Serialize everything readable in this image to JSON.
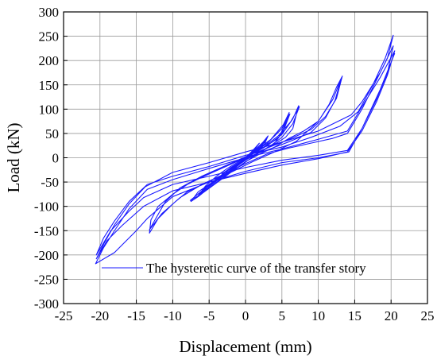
{
  "chart_data": {
    "type": "line",
    "title": "",
    "xlabel": "Displacement (mm)",
    "ylabel": "Load (kN)",
    "xlim": [
      -25,
      25
    ],
    "ylim": [
      -300,
      300
    ],
    "x_ticks": [
      -25,
      -20,
      -15,
      -10,
      -5,
      0,
      5,
      10,
      15,
      20,
      25
    ],
    "y_ticks": [
      -300,
      -250,
      -200,
      -150,
      -100,
      -50,
      0,
      50,
      100,
      150,
      200,
      250,
      300
    ],
    "grid": true,
    "legend_position": "lower-right",
    "series": [
      {
        "name": "The hysteretic curve of the transfer story",
        "color": "#1a1aff",
        "points": [
          [
            0,
            0
          ],
          [
            0.8,
            10
          ],
          [
            1.5,
            22
          ],
          [
            1.8,
            28
          ],
          [
            1.2,
            18
          ],
          [
            0.4,
            6
          ],
          [
            -0.4,
            -6
          ],
          [
            -1.0,
            -12
          ],
          [
            -1.5,
            -18
          ],
          [
            -1.2,
            -14
          ],
          [
            -0.4,
            -5
          ],
          [
            0.5,
            6
          ],
          [
            1.2,
            16
          ],
          [
            1.9,
            30
          ],
          [
            1.3,
            20
          ],
          [
            0.3,
            4
          ],
          [
            -0.6,
            -8
          ],
          [
            -1.6,
            -20
          ],
          [
            -1.0,
            -12
          ],
          [
            0,
            0
          ],
          [
            1.0,
            12
          ],
          [
            2.0,
            22
          ],
          [
            2.8,
            35
          ],
          [
            3.0,
            42
          ],
          [
            2.4,
            30
          ],
          [
            1.2,
            14
          ],
          [
            0,
            0
          ],
          [
            -1.2,
            -14
          ],
          [
            -2.5,
            -26
          ],
          [
            -3.2,
            -32
          ],
          [
            -2.6,
            -28
          ],
          [
            -1.2,
            -15
          ],
          [
            0.4,
            4
          ],
          [
            1.8,
            18
          ],
          [
            2.6,
            28
          ],
          [
            3.1,
            45
          ],
          [
            2.4,
            32
          ],
          [
            1.0,
            12
          ],
          [
            -0.5,
            -6
          ],
          [
            -2.0,
            -20
          ],
          [
            -3.2,
            -33
          ],
          [
            -2.5,
            -27
          ],
          [
            -1.0,
            -12
          ],
          [
            0,
            0
          ],
          [
            1.5,
            14
          ],
          [
            3.0,
            26
          ],
          [
            4.5,
            40
          ],
          [
            5.5,
            70
          ],
          [
            6.0,
            93
          ],
          [
            5.2,
            68
          ],
          [
            3.5,
            38
          ],
          [
            1.5,
            16
          ],
          [
            -0.5,
            -4
          ],
          [
            -2.5,
            -22
          ],
          [
            -4.0,
            -38
          ],
          [
            -5.5,
            -58
          ],
          [
            -6.5,
            -78
          ],
          [
            -5.6,
            -66
          ],
          [
            -4.0,
            -48
          ],
          [
            -2.0,
            -26
          ],
          [
            0,
            -5
          ],
          [
            2.0,
            12
          ],
          [
            4.0,
            30
          ],
          [
            5.2,
            55
          ],
          [
            6.1,
            90
          ],
          [
            5.0,
            60
          ],
          [
            3.0,
            30
          ],
          [
            1.0,
            10
          ],
          [
            -1.0,
            -12
          ],
          [
            -3.0,
            -32
          ],
          [
            -5.0,
            -55
          ],
          [
            -6.6,
            -80
          ],
          [
            -5.4,
            -66
          ],
          [
            -3.5,
            -45
          ],
          [
            -1.5,
            -22
          ],
          [
            0,
            -4
          ],
          [
            2.0,
            12
          ],
          [
            4.0,
            28
          ],
          [
            5.5,
            42
          ],
          [
            6.5,
            60
          ],
          [
            7.0,
            90
          ],
          [
            7.3,
            107
          ],
          [
            6.5,
            80
          ],
          [
            5.0,
            48
          ],
          [
            3.0,
            25
          ],
          [
            1.0,
            8
          ],
          [
            -1.0,
            -14
          ],
          [
            -3.0,
            -35
          ],
          [
            -5.0,
            -55
          ],
          [
            -6.5,
            -70
          ],
          [
            -7.5,
            -90
          ],
          [
            -6.5,
            -80
          ],
          [
            -5.0,
            -62
          ],
          [
            -3.0,
            -40
          ],
          [
            -1.0,
            -20
          ],
          [
            1.0,
            2
          ],
          [
            3.0,
            20
          ],
          [
            5.0,
            42
          ],
          [
            6.5,
            70
          ],
          [
            7.4,
            105
          ],
          [
            6.2,
            74
          ],
          [
            4.5,
            45
          ],
          [
            2.5,
            22
          ],
          [
            0.5,
            3
          ],
          [
            -1.5,
            -22
          ],
          [
            -3.5,
            -42
          ],
          [
            -5.5,
            -62
          ],
          [
            -7.6,
            -88
          ],
          [
            -6.2,
            -76
          ],
          [
            -4.0,
            -52
          ],
          [
            -2.0,
            -30
          ],
          [
            0,
            -8
          ],
          [
            2.0,
            8
          ],
          [
            4.0,
            22
          ],
          [
            6.0,
            40
          ],
          [
            8.0,
            55
          ],
          [
            10.0,
            75
          ],
          [
            11.5,
            110
          ],
          [
            12.5,
            145
          ],
          [
            13.2,
            165
          ],
          [
            12.3,
            118
          ],
          [
            11.0,
            82
          ],
          [
            9.0,
            52
          ],
          [
            6.0,
            33
          ],
          [
            3.0,
            16
          ],
          [
            0,
            0
          ],
          [
            -3.0,
            -20
          ],
          [
            -6.0,
            -40
          ],
          [
            -8.0,
            -55
          ],
          [
            -10.0,
            -75
          ],
          [
            -12.0,
            -100
          ],
          [
            -13.0,
            -128
          ],
          [
            -13.2,
            -155
          ],
          [
            -12.0,
            -125
          ],
          [
            -10.0,
            -95
          ],
          [
            -8.0,
            -70
          ],
          [
            -5.0,
            -48
          ],
          [
            -2.0,
            -30
          ],
          [
            1.0,
            -8
          ],
          [
            4.0,
            12
          ],
          [
            7.0,
            34
          ],
          [
            10.0,
            75
          ],
          [
            12.0,
            120
          ],
          [
            13.3,
            168
          ],
          [
            12.5,
            122
          ],
          [
            11.0,
            85
          ],
          [
            9.0,
            58
          ],
          [
            6.0,
            38
          ],
          [
            3.0,
            20
          ],
          [
            0,
            2
          ],
          [
            -3.0,
            -18
          ],
          [
            -6.0,
            -38
          ],
          [
            -9.0,
            -62
          ],
          [
            -11.0,
            -90
          ],
          [
            -13.2,
            -148
          ],
          [
            -11.5,
            -115
          ],
          [
            -9.0,
            -82
          ],
          [
            -6.0,
            -55
          ],
          [
            -3.0,
            -34
          ],
          [
            0,
            -12
          ],
          [
            3.0,
            8
          ],
          [
            6.0,
            20
          ],
          [
            9.0,
            30
          ],
          [
            12.0,
            40
          ],
          [
            14.0,
            50
          ],
          [
            16.0,
            100
          ],
          [
            18.0,
            160
          ],
          [
            19.5,
            205
          ],
          [
            20.3,
            252
          ],
          [
            19.2,
            205
          ],
          [
            17.5,
            150
          ],
          [
            15.5,
            95
          ],
          [
            13.0,
            65
          ],
          [
            9.0,
            42
          ],
          [
            5.0,
            22
          ],
          [
            0,
            5
          ],
          [
            -5.0,
            -18
          ],
          [
            -10.0,
            -38
          ],
          [
            -13.5,
            -55
          ],
          [
            -16.0,
            -90
          ],
          [
            -18.0,
            -130
          ],
          [
            -19.5,
            -165
          ],
          [
            -20.5,
            -200
          ],
          [
            -18.5,
            -150
          ],
          [
            -16.0,
            -110
          ],
          [
            -14.0,
            -82
          ],
          [
            -10.0,
            -55
          ],
          [
            -5.0,
            -38
          ],
          [
            0,
            -20
          ],
          [
            5.0,
            -5
          ],
          [
            10.0,
            5
          ],
          [
            14.0,
            15
          ],
          [
            16.0,
            60
          ],
          [
            18.0,
            120
          ],
          [
            19.5,
            175
          ],
          [
            20.3,
            230
          ],
          [
            18.5,
            175
          ],
          [
            16.0,
            115
          ],
          [
            14.5,
            88
          ],
          [
            10.0,
            55
          ],
          [
            5.0,
            32
          ],
          [
            0,
            12
          ],
          [
            -5.0,
            -10
          ],
          [
            -10.0,
            -30
          ],
          [
            -13.8,
            -60
          ],
          [
            -16.0,
            -95
          ],
          [
            -18.0,
            -138
          ],
          [
            -19.5,
            -178
          ],
          [
            -20.5,
            -208
          ],
          [
            -19.0,
            -170
          ],
          [
            -17.0,
            -140
          ],
          [
            -14.0,
            -100
          ],
          [
            -10.0,
            -68
          ],
          [
            -5.0,
            -50
          ],
          [
            0,
            -32
          ],
          [
            5.0,
            -15
          ],
          [
            10.0,
            -2
          ],
          [
            14.0,
            12
          ],
          [
            16.0,
            55
          ],
          [
            18.0,
            115
          ],
          [
            19.5,
            170
          ],
          [
            20.5,
            220
          ],
          [
            18.5,
            165
          ],
          [
            16.0,
            105
          ],
          [
            14.0,
            55
          ],
          [
            10.0,
            38
          ],
          [
            5.0,
            18
          ],
          [
            0,
            0
          ],
          [
            -5.0,
            -22
          ],
          [
            -10.0,
            -45
          ],
          [
            -13.5,
            -65
          ],
          [
            -16.0,
            -105
          ],
          [
            -18.0,
            -150
          ],
          [
            -19.5,
            -185
          ],
          [
            -20.6,
            -218
          ],
          [
            -18.0,
            -195
          ],
          [
            -15.0,
            -150
          ],
          [
            -13.5,
            -125
          ],
          [
            -10.0,
            -80
          ],
          [
            -5.0,
            -50
          ],
          [
            0,
            -28
          ],
          [
            5.0,
            -10
          ],
          [
            10.0,
            0
          ],
          [
            14.2,
            12
          ],
          [
            16.0,
            60
          ],
          [
            18.5,
            140
          ],
          [
            20.5,
            215
          ]
        ]
      }
    ]
  }
}
